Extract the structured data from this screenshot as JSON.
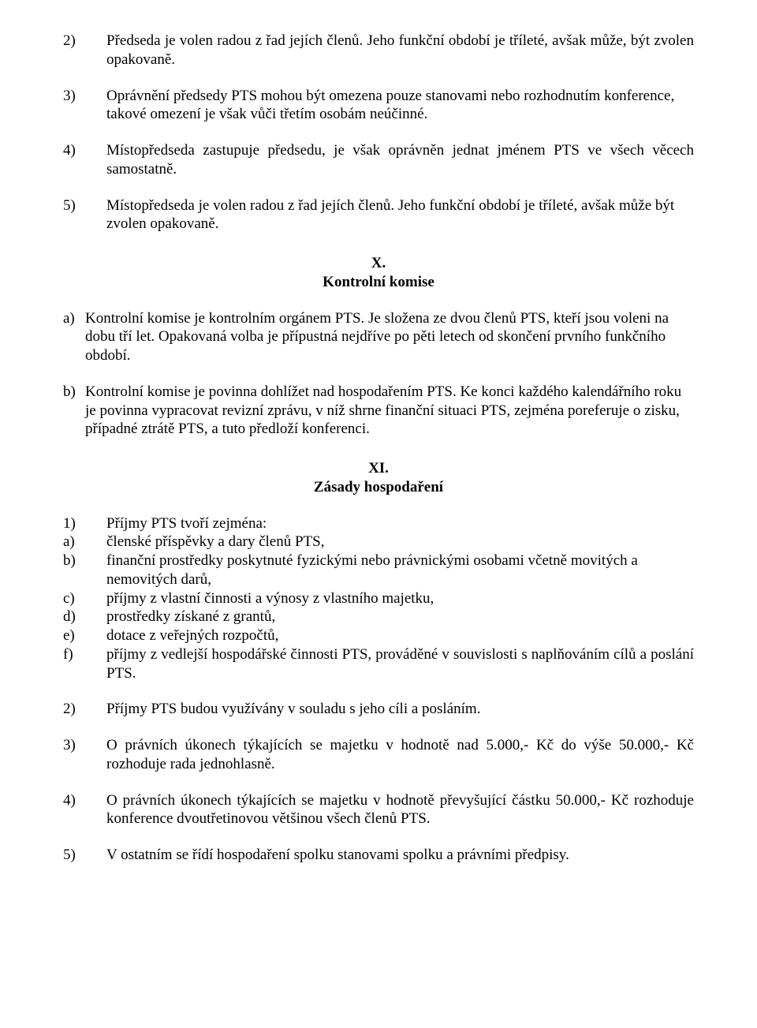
{
  "items_top": [
    {
      "num": "2)",
      "text": "Předseda je volen radou z řad jejích členů. Jeho funkční období je tříleté, avšak může, být zvolen opakovaně.",
      "justify": true
    },
    {
      "num": "3)",
      "text": "Oprávnění předsedy PTS mohou být omezena pouze stanovami nebo rozhodnutím konference, takové omezení je však vůči třetím osobám neúčinné.",
      "justify": false
    },
    {
      "num": "4)",
      "text": "Místopředseda zastupuje předsedu, je však oprávněn jednat jménem PTS ve všech věcech samostatně.",
      "justify": true
    },
    {
      "num": "5)",
      "text": "Místopředseda je volen radou z řad jejích členů. Jeho funkční období je tříleté, avšak může být zvolen opakovaně.",
      "justify": false
    }
  ],
  "section_x": {
    "roman": "X.",
    "title": "Kontrolní komise"
  },
  "letters_x": [
    {
      "letter": "a)",
      "text": "Kontrolní komise je kontrolním orgánem PTS. Je složena ze dvou členů PTS, kteří jsou voleni na dobu tří let. Opakovaná volba je přípustná nejdříve po pěti letech od skončení prvního funkčního období."
    },
    {
      "letter": "b)",
      "text": "Kontrolní komise je povinna dohlížet nad hospodařením PTS. Ke konci každého kalendářního roku je povinna vypracovat revizní zprávu, v níž shrne finanční situaci PTS, zejména poreferuje o zisku, případné ztrátě PTS, a tuto předloží konferenci."
    }
  ],
  "section_xi": {
    "roman": "XI.",
    "title": "Zásady hospodaření"
  },
  "xi_block1_lead": {
    "num": "1)",
    "text": "Příjmy PTS tvoří zejména:"
  },
  "xi_block1_items": [
    {
      "num": "a)",
      "text": "členské příspěvky a dary členů PTS,",
      "justify": false
    },
    {
      "num": "b)",
      "text": "finanční prostředky poskytnuté fyzickými nebo právnickými osobami včetně movitých a nemovitých darů,",
      "justify": false
    },
    {
      "num": "c)",
      "text": "příjmy z vlastní činnosti a výnosy z vlastního majetku,",
      "justify": false
    },
    {
      "num": "d)",
      "text": "prostředky získané z grantů,",
      "justify": false
    },
    {
      "num": "e)",
      "text": "dotace z veřejných rozpočtů,",
      "justify": false
    },
    {
      "num": "f)",
      "text": "příjmy z vedlejší hospodářské činnosti PTS, prováděné v souvislosti s naplňováním cílů a poslání PTS.",
      "justify": true
    }
  ],
  "xi_rest": [
    {
      "num": "2)",
      "text": "Příjmy PTS budou využívány v souladu s jeho cíli a posláním.",
      "justify": false
    },
    {
      "num": "3)",
      "text": "O právních úkonech týkajících se majetku v hodnotě nad 5.000,- Kč do výše 50.000,- Kč rozhoduje rada jednohlasně.",
      "justify": true
    },
    {
      "num": "4)",
      "text": "O právních úkonech týkajících se majetku v hodnotě převyšující částku 50.000,- Kč rozhoduje konference dvoutřetinovou většinou všech členů PTS.",
      "justify": true
    },
    {
      "num": "5)",
      "text": "V ostatním se řídí hospodaření spolku stanovami spolku a právními předpisy.",
      "justify": false
    }
  ]
}
